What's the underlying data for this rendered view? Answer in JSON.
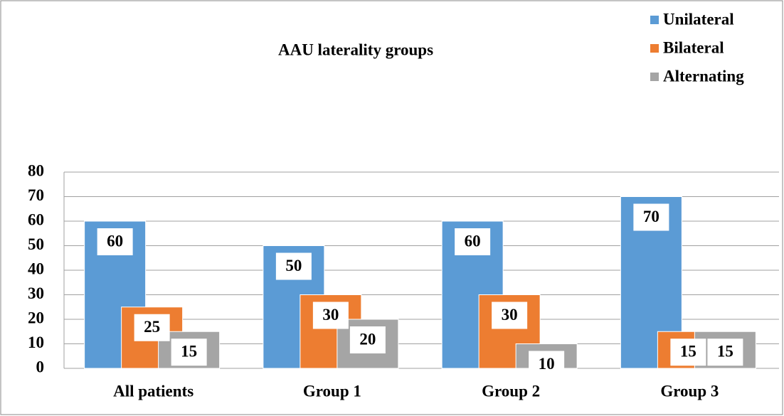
{
  "chart_data": {
    "type": "bar",
    "title": "AAU laterality groups",
    "categories": [
      "All patients",
      "Group 1",
      "Group 2",
      "Group 3"
    ],
    "series": [
      {
        "name": "Unilateral",
        "color": "#5b9bd5",
        "values": [
          60,
          50,
          60,
          70
        ]
      },
      {
        "name": "Bilateral",
        "color": "#ed7d31",
        "values": [
          25,
          30,
          30,
          15
        ]
      },
      {
        "name": "Alternating",
        "color": "#a5a5a5",
        "values": [
          15,
          20,
          10,
          15
        ]
      }
    ],
    "ylim": [
      0,
      80
    ],
    "yticks": [
      0,
      10,
      20,
      30,
      40,
      50,
      60,
      70,
      80
    ],
    "grid": true,
    "legend": "top-right"
  }
}
